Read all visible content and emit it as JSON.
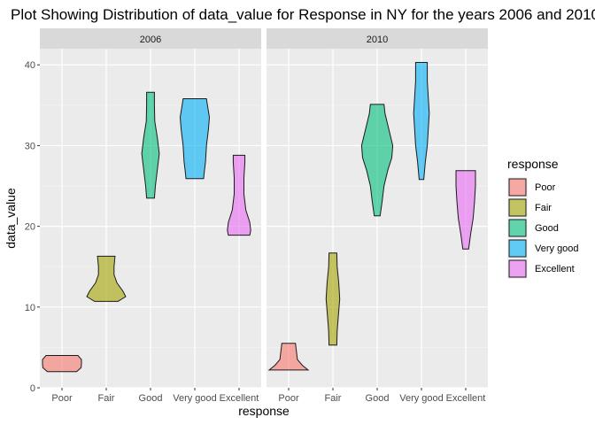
{
  "chart_data": {
    "type": "violin",
    "title": "Plot Showing Distribution of data_value for Response in NY for the years 2006 and 2010",
    "xlabel": "response",
    "ylabel": "data_value",
    "ylim": [
      0,
      42
    ],
    "yticks": [
      0,
      10,
      20,
      30,
      40
    ],
    "categories": [
      "Poor",
      "Fair",
      "Good",
      "Very good",
      "Excellent"
    ],
    "grid": true,
    "legend": {
      "title": "response",
      "position": "right",
      "entries": [
        "Poor",
        "Fair",
        "Good",
        "Very good",
        "Excellent"
      ]
    },
    "colors": {
      "Poor": "#F8766D",
      "Fair": "#A3A500",
      "Good": "#00BF7D",
      "Very good": "#00B0F6",
      "Excellent": "#E76BF3"
    },
    "panels": [
      {
        "facet": "2006",
        "violins": [
          {
            "category": "Poor",
            "profile": [
              [
                2.0,
                0.75
              ],
              [
                2.5,
                0.98
              ],
              [
                3.0,
                1.0
              ],
              [
                3.5,
                1.0
              ],
              [
                4.0,
                0.82
              ]
            ]
          },
          {
            "category": "Fair",
            "profile": [
              [
                10.7,
                0.6
              ],
              [
                11.3,
                1.0
              ],
              [
                12.0,
                0.85
              ],
              [
                13.0,
                0.55
              ],
              [
                14.0,
                0.4
              ],
              [
                15.0,
                0.4
              ],
              [
                16.3,
                0.45
              ]
            ]
          },
          {
            "category": "Good",
            "profile": [
              [
                23.5,
                0.2
              ],
              [
                25.0,
                0.25
              ],
              [
                27.0,
                0.35
              ],
              [
                29.0,
                0.45
              ],
              [
                31.0,
                0.35
              ],
              [
                33.0,
                0.22
              ],
              [
                35.0,
                0.2
              ],
              [
                36.6,
                0.2
              ]
            ]
          },
          {
            "category": "Very good",
            "profile": [
              [
                25.9,
                0.45
              ],
              [
                27.0,
                0.5
              ],
              [
                28.0,
                0.55
              ],
              [
                30.0,
                0.6
              ],
              [
                32.0,
                0.7
              ],
              [
                33.5,
                0.75
              ],
              [
                35.0,
                0.65
              ],
              [
                35.8,
                0.6
              ]
            ]
          },
          {
            "category": "Excellent",
            "profile": [
              [
                18.9,
                0.55
              ],
              [
                19.5,
                0.6
              ],
              [
                20.5,
                0.55
              ],
              [
                22.0,
                0.35
              ],
              [
                24.0,
                0.25
              ],
              [
                26.0,
                0.25
              ],
              [
                28.0,
                0.3
              ],
              [
                28.8,
                0.3
              ]
            ]
          }
        ]
      },
      {
        "facet": "2010",
        "violins": [
          {
            "category": "Poor",
            "profile": [
              [
                2.2,
                1.0
              ],
              [
                2.8,
                0.7
              ],
              [
                3.5,
                0.45
              ],
              [
                4.5,
                0.4
              ],
              [
                5.5,
                0.35
              ]
            ]
          },
          {
            "category": "Fair",
            "profile": [
              [
                5.3,
                0.2
              ],
              [
                7.0,
                0.22
              ],
              [
                9.0,
                0.28
              ],
              [
                11.0,
                0.35
              ],
              [
                13.0,
                0.3
              ],
              [
                15.0,
                0.22
              ],
              [
                16.7,
                0.2
              ]
            ]
          },
          {
            "category": "Good",
            "profile": [
              [
                21.3,
                0.15
              ],
              [
                23.0,
                0.25
              ],
              [
                25.0,
                0.35
              ],
              [
                27.0,
                0.55
              ],
              [
                28.5,
                0.75
              ],
              [
                30.0,
                0.8
              ],
              [
                32.0,
                0.6
              ],
              [
                34.0,
                0.4
              ],
              [
                35.1,
                0.35
              ]
            ]
          },
          {
            "category": "Very good",
            "profile": [
              [
                25.8,
                0.12
              ],
              [
                28.0,
                0.2
              ],
              [
                30.0,
                0.3
              ],
              [
                32.0,
                0.35
              ],
              [
                34.0,
                0.4
              ],
              [
                36.0,
                0.35
              ],
              [
                38.0,
                0.3
              ],
              [
                40.3,
                0.3
              ]
            ]
          },
          {
            "category": "Excellent",
            "profile": [
              [
                17.2,
                0.15
              ],
              [
                19.0,
                0.25
              ],
              [
                21.0,
                0.38
              ],
              [
                23.0,
                0.45
              ],
              [
                25.0,
                0.5
              ],
              [
                26.9,
                0.5
              ]
            ]
          }
        ]
      }
    ]
  }
}
